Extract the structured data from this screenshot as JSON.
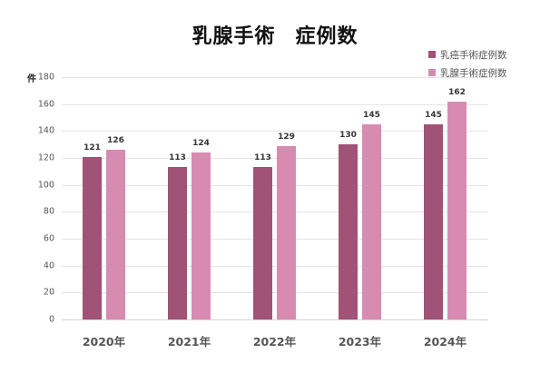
{
  "title": {
    "part1": "乳腺手術",
    "part2": "症例数"
  },
  "legend": [
    {
      "label": "乳癌手術症例数",
      "color": "#a05277"
    },
    {
      "label": "乳腺手術症例数",
      "color": "#d78bb0"
    }
  ],
  "y_unit": "件",
  "y_ticks": [
    "0",
    "20",
    "40",
    "60",
    "80",
    "100",
    "120",
    "140",
    "160",
    "180"
  ],
  "x_labels": [
    "2020年",
    "2021年",
    "2022年",
    "2023年",
    "2024年"
  ],
  "chart_data": {
    "type": "bar",
    "title": "乳腺手術　症例数",
    "xlabel": "",
    "ylabel": "件",
    "ylim": [
      0,
      180
    ],
    "grid": true,
    "legend_position": "top-right",
    "categories": [
      "2020年",
      "2021年",
      "2022年",
      "2023年",
      "2024年"
    ],
    "series": [
      {
        "name": "乳癌手術症例数",
        "color": "#a05277",
        "values": [
          121,
          113,
          113,
          130,
          145
        ]
      },
      {
        "name": "乳腺手術症例数",
        "color": "#d78bb0",
        "values": [
          126,
          124,
          129,
          145,
          162
        ]
      }
    ]
  }
}
